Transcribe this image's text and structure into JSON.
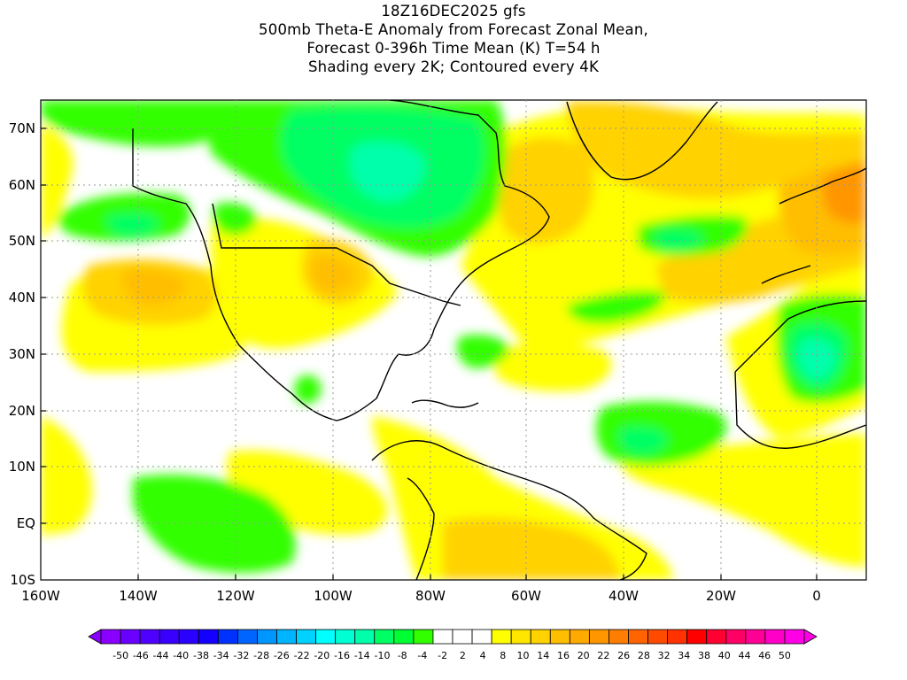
{
  "title": {
    "line1": "18Z16DEC2025 gfs",
    "line2": "500mb Theta-E Anomaly from Forecast Zonal Mean,",
    "line3": "Forecast 0-396h Time Mean (K) T=54 h",
    "line4": "Shading every 2K; Contoured every 4K"
  },
  "map": {
    "lat_labels": [
      "70N",
      "60N",
      "50N",
      "40N",
      "30N",
      "20N",
      "10N",
      "EQ",
      "10S"
    ],
    "lon_labels": [
      "160W",
      "140W",
      "120W",
      "100W",
      "80W",
      "60W",
      "40W",
      "20W",
      "0"
    ]
  },
  "colorbar": {
    "labels": [
      "-50",
      "-46",
      "-44",
      "-40",
      "-38",
      "-34",
      "-32",
      "-28",
      "-26",
      "-22",
      "-20",
      "-16",
      "-14",
      "-10",
      "-8",
      "-4",
      "-2",
      "2",
      "4",
      "8",
      "10",
      "14",
      "16",
      "20",
      "22",
      "26",
      "28",
      "32",
      "34",
      "38",
      "40",
      "44",
      "46",
      "50"
    ],
    "colors": [
      "#8a00ff",
      "#6a00ff",
      "#5000ff",
      "#3a00ff",
      "#2a00ff",
      "#1400ff",
      "#0032ff",
      "#0064ff",
      "#0096ff",
      "#00b4ff",
      "#00d2ff",
      "#00ffff",
      "#00ffd2",
      "#00ffaa",
      "#00ff64",
      "#00ff32",
      "#32ff00",
      "#ffffff",
      "#ffffff",
      "#ffffff",
      "#ffff00",
      "#ffe600",
      "#ffd200",
      "#ffbe00",
      "#ffaa00",
      "#ff9600",
      "#ff7d00",
      "#ff6400",
      "#ff4b00",
      "#ff3200",
      "#ff0000",
      "#ff0032",
      "#ff0064",
      "#ff0096",
      "#ff00c8",
      "#ff00e6"
    ]
  }
}
